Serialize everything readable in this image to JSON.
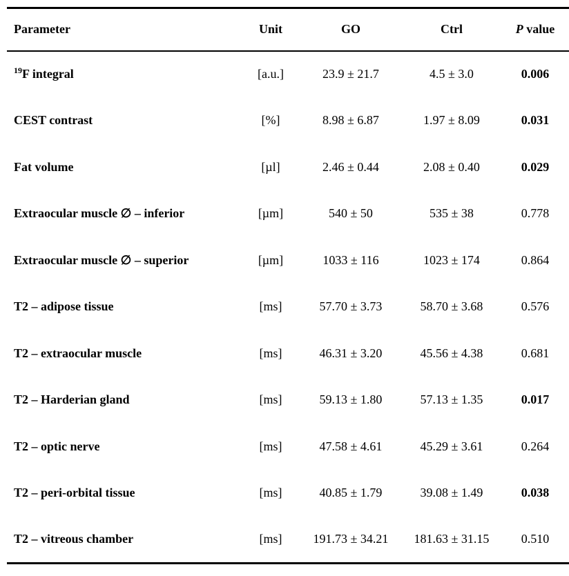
{
  "colors": {
    "text": "#000000",
    "background": "#ffffff",
    "rule": "#000000"
  },
  "table": {
    "header": {
      "parameter": "Parameter",
      "unit": "Unit",
      "go": "GO",
      "ctrl": "Ctrl",
      "p_italic": "P",
      "p_rest": " value"
    },
    "rows": [
      {
        "sup": "19",
        "parameter": "F integral",
        "unit": "[a.u.]",
        "go": "23.9 ± 21.7",
        "ctrl": "4.5 ± 3.0",
        "p": "0.006",
        "significant": true
      },
      {
        "sup": "",
        "parameter": "CEST contrast",
        "unit": "[%]",
        "go": "8.98 ± 6.87",
        "ctrl": "1.97 ± 8.09",
        "p": "0.031",
        "significant": true
      },
      {
        "sup": "",
        "parameter": "Fat volume",
        "unit": "[µl]",
        "go": "2.46 ± 0.44",
        "ctrl": "2.08 ± 0.40",
        "p": "0.029",
        "significant": true
      },
      {
        "sup": "",
        "parameter": "Extraocular muscle ∅ – inferior",
        "unit": "[µm]",
        "go": "540 ± 50",
        "ctrl": "535 ± 38",
        "p": "0.778",
        "significant": false
      },
      {
        "sup": "",
        "parameter": "Extraocular muscle ∅ – superior",
        "unit": "[µm]",
        "go": "1033 ± 116",
        "ctrl": "1023 ± 174",
        "p": "0.864",
        "significant": false
      },
      {
        "sup": "",
        "parameter": "T2 – adipose tissue",
        "unit": "[ms]",
        "go": "57.70 ± 3.73",
        "ctrl": "58.70 ± 3.68",
        "p": "0.576",
        "significant": false
      },
      {
        "sup": "",
        "parameter": "T2 – extraocular muscle",
        "unit": "[ms]",
        "go": "46.31 ± 3.20",
        "ctrl": "45.56 ± 4.38",
        "p": "0.681",
        "significant": false
      },
      {
        "sup": "",
        "parameter": "T2 – Harderian gland",
        "unit": "[ms]",
        "go": "59.13 ± 1.80",
        "ctrl": "57.13 ± 1.35",
        "p": "0.017",
        "significant": true
      },
      {
        "sup": "",
        "parameter": "T2 – optic nerve",
        "unit": "[ms]",
        "go": "47.58 ± 4.61",
        "ctrl": "45.29 ± 3.61",
        "p": "0.264",
        "significant": false
      },
      {
        "sup": "",
        "parameter": "T2 – peri-orbital tissue",
        "unit": "[ms]",
        "go": "40.85 ± 1.79",
        "ctrl": "39.08 ± 1.49",
        "p": "0.038",
        "significant": true
      },
      {
        "sup": "",
        "parameter": "T2 – vitreous chamber",
        "unit": "[ms]",
        "go": "191.73 ± 34.21",
        "ctrl": "181.63 ± 31.15",
        "p": "0.510",
        "significant": false
      }
    ]
  }
}
